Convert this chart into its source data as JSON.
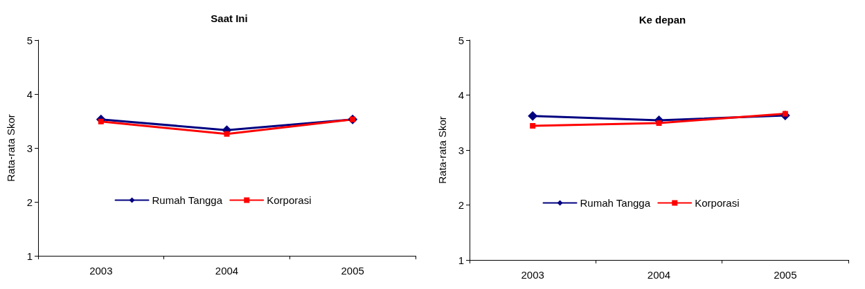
{
  "chart_data": [
    {
      "type": "line",
      "title": "Saat Ini",
      "ylabel": "Rata-rata Skor",
      "categories": [
        "2003",
        "2004",
        "2005"
      ],
      "series": [
        {
          "name": "Rumah Tangga",
          "color": "#000080",
          "marker": "diamond",
          "values": [
            3.53,
            3.33,
            3.53
          ]
        },
        {
          "name": "Korporasi",
          "color": "#ff0000",
          "marker": "square",
          "values": [
            3.49,
            3.26,
            3.53
          ]
        }
      ],
      "ylim": [
        1,
        5
      ],
      "yticks": [
        1,
        2,
        3,
        4,
        5
      ],
      "grid": false,
      "legend": "bottom"
    },
    {
      "type": "line",
      "title": "Ke depan",
      "ylabel": "Rata-rata Skor",
      "categories": [
        "2003",
        "2004",
        "2005"
      ],
      "series": [
        {
          "name": "Rumah Tangga",
          "color": "#000080",
          "marker": "diamond",
          "values": [
            3.62,
            3.54,
            3.63
          ]
        },
        {
          "name": "Korporasi",
          "color": "#ff0000",
          "marker": "square",
          "values": [
            3.44,
            3.49,
            3.66
          ]
        }
      ],
      "ylim": [
        1,
        5
      ],
      "yticks": [
        1,
        2,
        3,
        4,
        5
      ],
      "grid": false,
      "legend": "bottom"
    }
  ]
}
